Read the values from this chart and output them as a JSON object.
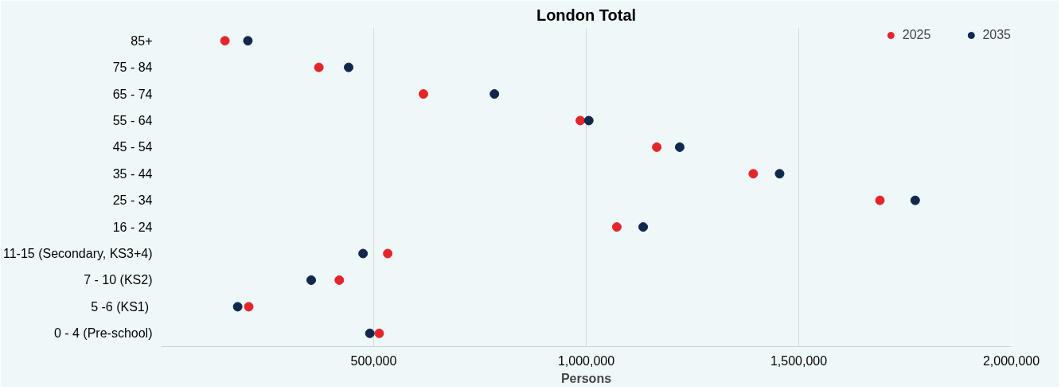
{
  "chart_data": {
    "type": "scatter",
    "title": "London Total",
    "xlabel": "Persons",
    "categories": [
      "85+",
      "75 - 84",
      "65 - 74",
      "55 - 64",
      "45 - 54",
      "35 - 44",
      "25 - 34",
      "16 - 24",
      "11-15 (Secondary, KS3+4)",
      "7 - 10 (KS2)",
      "5  -6 (KS1)",
      "0 - 4 (Pre-school)"
    ],
    "series": [
      {
        "name": "2025",
        "color": "#e3262b",
        "values": [
          150000,
          371000,
          617000,
          986000,
          1166000,
          1393000,
          1691000,
          1072000,
          533000,
          419000,
          206000,
          513000
        ]
      },
      {
        "name": "2035",
        "color": "#10284c",
        "values": [
          204000,
          441000,
          784000,
          1006000,
          1220000,
          1455000,
          1774000,
          1134000,
          475000,
          353000,
          180000,
          491000
        ]
      }
    ],
    "orientation": "horizontal",
    "xlim": [
      0,
      2000000
    ],
    "xticks": [
      {
        "value": 500000,
        "label": "500,000"
      },
      {
        "value": 1000000,
        "label": "1,000,000"
      },
      {
        "value": 1500000,
        "label": "1,500,000"
      },
      {
        "value": 2000000,
        "label": "2,000,000"
      }
    ],
    "grid": "x",
    "legend": "top right",
    "marker": "circle"
  }
}
